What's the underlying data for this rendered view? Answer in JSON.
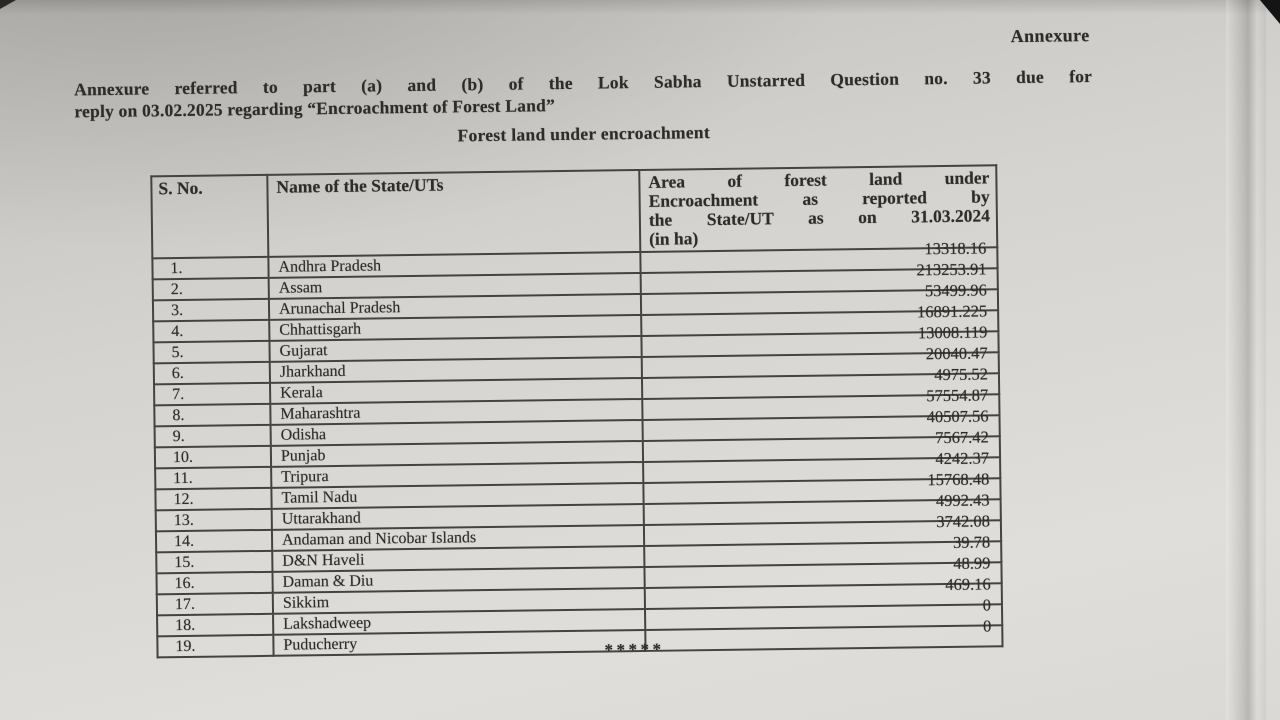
{
  "page": {
    "annexure_label": "Annexure",
    "reference_line1": "Annexure referred to part (a) and (b) of the Lok Sabha Unstarred Question no. 33 due for",
    "reference_line2": "reply on 03.02.2025 regarding “Encroachment of Forest Land”",
    "table_title": "Forest land under encroachment",
    "footer_marks": "*****"
  },
  "table": {
    "columns": {
      "sno": "S. No.",
      "state": "Name of the State/UTs",
      "area": "Area of forest land under Encroachment as reported by the State/UT as on 31.03.2024 (in ha)"
    },
    "area_header_lines": [
      "Area of forest land under",
      "Encroachment as reported by",
      "the State/UT as on 31.03.2024",
      "(in ha)"
    ],
    "rows": [
      {
        "sno": "1.",
        "state": "Andhra Pradesh",
        "area": "13318.16"
      },
      {
        "sno": "2.",
        "state": "Assam",
        "area": "213253.91"
      },
      {
        "sno": "3.",
        "state": "Arunachal Pradesh",
        "area": "53499.96"
      },
      {
        "sno": "4.",
        "state": "Chhattisgarh",
        "area": "16891.225"
      },
      {
        "sno": "5.",
        "state": "Gujarat",
        "area": "13008.119"
      },
      {
        "sno": "6.",
        "state": "Jharkhand",
        "area": "20040.47"
      },
      {
        "sno": "7.",
        "state": "Kerala",
        "area": "4975.52"
      },
      {
        "sno": "8.",
        "state": "Maharashtra",
        "area": "57554.87"
      },
      {
        "sno": "9.",
        "state": "Odisha",
        "area": "40507.56"
      },
      {
        "sno": "10.",
        "state": "Punjab",
        "area": "7567.42"
      },
      {
        "sno": "11.",
        "state": "Tripura",
        "area": "4242.37"
      },
      {
        "sno": "12.",
        "state": "Tamil Nadu",
        "area": "15768.48"
      },
      {
        "sno": "13.",
        "state": "Uttarakhand",
        "area": "4992.43"
      },
      {
        "sno": "14.",
        "state": "Andaman and Nicobar Islands",
        "area": "3742.08"
      },
      {
        "sno": "15.",
        "state": "D&N Haveli",
        "area": "39.78"
      },
      {
        "sno": "16.",
        "state": "Daman & Diu",
        "area": "48.99"
      },
      {
        "sno": "17.",
        "state": "Sikkim",
        "area": "469.16"
      },
      {
        "sno": "18.",
        "state": "Lakshadweep",
        "area": "0"
      },
      {
        "sno": "19.",
        "state": "Puducherry",
        "area": "0"
      }
    ]
  },
  "colors": {
    "paper": "#d5d3cf",
    "paper-dark": "#c2c0bc",
    "paper-light": "#e0deda",
    "ink": "#2e2c29",
    "border": "#454240",
    "edge": "#141414"
  }
}
